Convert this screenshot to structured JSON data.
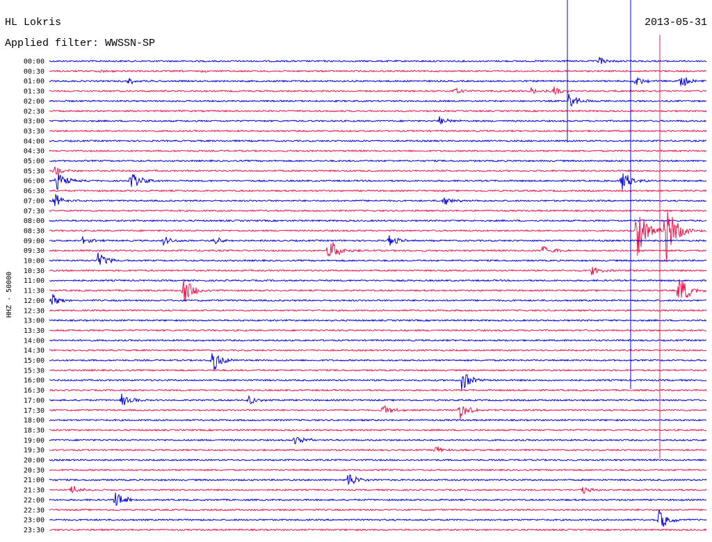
{
  "header": {
    "station": "HL Lokris",
    "date": "2013-05-31",
    "filter": "Applied filter: WWSSN-SP"
  },
  "axis": {
    "ylabel": "HHZ - 50000"
  },
  "colors": {
    "even_trace": "#0000e6",
    "odd_trace": "#f0144a",
    "background": "#ffffff",
    "text": "#000000"
  },
  "chart_data": {
    "type": "line",
    "title": "HL Lokris",
    "subtitle": "Applied filter: WWSSN-SP",
    "ylabel": "HHZ - 50000",
    "xlabel": "",
    "grid": false,
    "legend": "none",
    "x": {
      "unit": "minutes after row start",
      "range": [
        0,
        30
      ]
    },
    "categories": [
      "00:00",
      "00:30",
      "01:00",
      "01:30",
      "02:00",
      "02:30",
      "03:00",
      "03:30",
      "04:00",
      "04:30",
      "05:00",
      "05:30",
      "06:00",
      "06:30",
      "07:00",
      "07:30",
      "08:00",
      "08:30",
      "09:00",
      "09:30",
      "10:00",
      "10:30",
      "11:00",
      "11:30",
      "12:00",
      "12:30",
      "13:00",
      "13:30",
      "14:00",
      "14:30",
      "15:00",
      "15:30",
      "16:00",
      "16:30",
      "17:00",
      "17:30",
      "18:00",
      "18:30",
      "19:00",
      "19:30",
      "20:00",
      "20:30",
      "21:00",
      "21:30",
      "22:00",
      "22:30",
      "23:00",
      "23:30"
    ],
    "series": [
      {
        "name": "HHZ",
        "events": [
          {
            "row": "00:00",
            "minute": 25.1,
            "amp": 5.5
          },
          {
            "row": "00:30",
            "minute": 2.3,
            "amp": 2.5
          },
          {
            "row": "00:30",
            "minute": 6.8,
            "amp": 2.0
          },
          {
            "row": "01:00",
            "minute": 3.6,
            "amp": 6.0
          },
          {
            "row": "01:00",
            "minute": 26.7,
            "amp": 8.0
          },
          {
            "row": "01:00",
            "minute": 28.8,
            "amp": 12.0
          },
          {
            "row": "01:30",
            "minute": 18.5,
            "amp": 6.0
          },
          {
            "row": "01:30",
            "minute": 22.0,
            "amp": 5.0
          },
          {
            "row": "01:30",
            "minute": 23.0,
            "amp": 7.0
          },
          {
            "row": "02:00",
            "minute": 23.7,
            "amp": 12.0
          },
          {
            "row": "03:00",
            "minute": 17.8,
            "amp": 6.0
          },
          {
            "row": "05:30",
            "minute": 0.2,
            "amp": 8.0
          },
          {
            "row": "06:00",
            "minute": 0.3,
            "amp": 15.0
          },
          {
            "row": "06:00",
            "minute": 3.7,
            "amp": 15.0
          },
          {
            "row": "06:00",
            "minute": 26.1,
            "amp": 18.0
          },
          {
            "row": "07:00",
            "minute": 0.2,
            "amp": 12.0
          },
          {
            "row": "07:00",
            "minute": 18.0,
            "amp": 8.0
          },
          {
            "row": "08:30",
            "minute": 26.8,
            "amp": 45.0
          },
          {
            "row": "08:30",
            "minute": 28.1,
            "amp": 60.0
          },
          {
            "row": "09:00",
            "minute": 1.5,
            "amp": 6.0
          },
          {
            "row": "09:00",
            "minute": 5.2,
            "amp": 7.0
          },
          {
            "row": "09:00",
            "minute": 7.5,
            "amp": 7.0
          },
          {
            "row": "09:00",
            "minute": 15.5,
            "amp": 10.0
          },
          {
            "row": "09:30",
            "minute": 12.7,
            "amp": 22.0
          },
          {
            "row": "09:30",
            "minute": 22.5,
            "amp": 10.0
          },
          {
            "row": "10:00",
            "minute": 2.2,
            "amp": 14.0
          },
          {
            "row": "10:30",
            "minute": 24.7,
            "amp": 8.0
          },
          {
            "row": "11:30",
            "minute": 6.1,
            "amp": 24.0
          },
          {
            "row": "11:30",
            "minute": 28.7,
            "amp": 30.0
          },
          {
            "row": "12:00",
            "minute": 0.1,
            "amp": 10.0
          },
          {
            "row": "15:00",
            "minute": 7.4,
            "amp": 20.0
          },
          {
            "row": "16:00",
            "minute": 18.8,
            "amp": 18.0
          },
          {
            "row": "17:00",
            "minute": 3.3,
            "amp": 10.0
          },
          {
            "row": "17:00",
            "minute": 9.1,
            "amp": 8.0
          },
          {
            "row": "17:30",
            "minute": 15.2,
            "amp": 9.0
          },
          {
            "row": "17:30",
            "minute": 18.7,
            "amp": 16.0
          },
          {
            "row": "19:00",
            "minute": 11.2,
            "amp": 9.0
          },
          {
            "row": "19:30",
            "minute": 17.6,
            "amp": 7.0
          },
          {
            "row": "21:00",
            "minute": 13.6,
            "amp": 13.0
          },
          {
            "row": "21:30",
            "minute": 1.0,
            "amp": 7.0
          },
          {
            "row": "21:30",
            "minute": 24.3,
            "amp": 7.0
          },
          {
            "row": "22:00",
            "minute": 3.0,
            "amp": 14.0
          },
          {
            "row": "23:00",
            "minute": 27.8,
            "amp": 18.0
          }
        ]
      }
    ]
  }
}
